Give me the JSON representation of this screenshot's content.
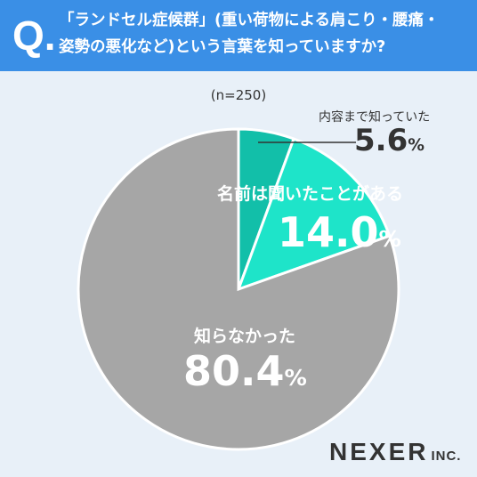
{
  "header": {
    "q_mark": "Q.",
    "question": "「ランドセル症候群」(重い荷物による肩こり・腰痛・\n姿勢の悪化など)という言葉を知っていますか?"
  },
  "chart_data": {
    "type": "pie",
    "sample": "(n=250)",
    "slices": [
      {
        "label": "内容まで知っていた",
        "value": 5.6,
        "display": "5.6",
        "color": "#12bfa9"
      },
      {
        "label": "名前は聞いたことがある",
        "value": 14.0,
        "display": "14.0",
        "color": "#1ee4c9"
      },
      {
        "label": "知らなかった",
        "value": 80.4,
        "display": "80.4",
        "color": "#a6a6a6"
      }
    ],
    "unit": "%",
    "start": "12 o'clock, clockwise",
    "legend": "none"
  },
  "logo": {
    "main": "NEXER",
    "sub": "INC."
  }
}
